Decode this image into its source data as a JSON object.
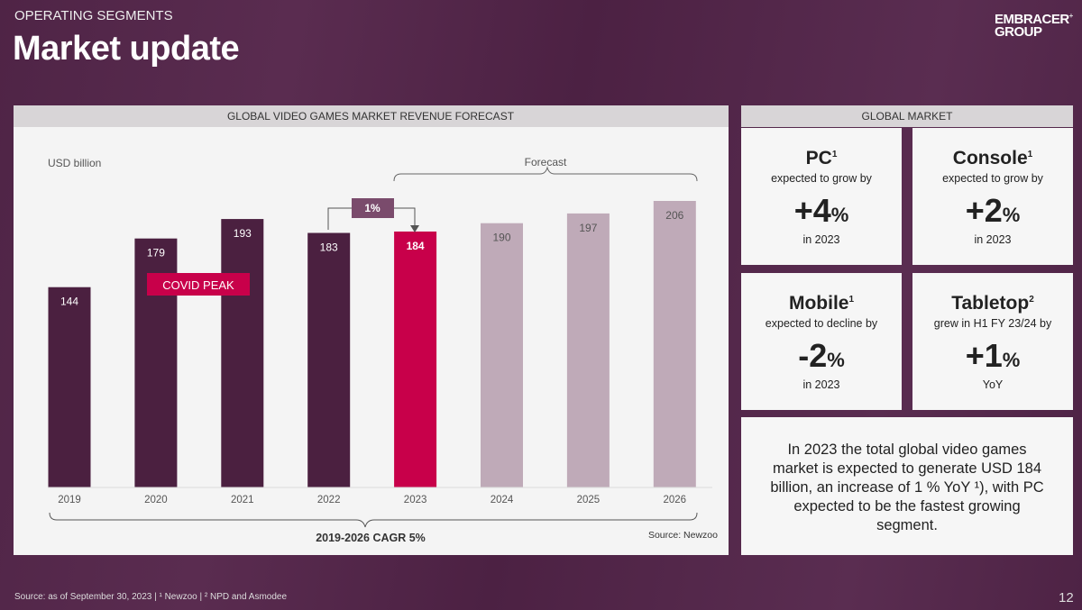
{
  "header": {
    "section": "OPERATING SEGMENTS",
    "title": "Market update",
    "logo": "EMBRACER GROUP"
  },
  "chart_panel": {
    "title": "GLOBAL VIDEO GAMES MARKET REVENUE FORECAST",
    "source": "Source: Newzoo"
  },
  "chart_data": {
    "type": "bar",
    "title": "GLOBAL VIDEO GAMES MARKET REVENUE FORECAST",
    "ylabel": "USD billion",
    "categories": [
      "2019",
      "2020",
      "2021",
      "2022",
      "2023",
      "2024",
      "2025",
      "2026"
    ],
    "values": [
      144,
      179,
      193,
      183,
      184,
      190,
      197,
      206
    ],
    "bar_kind": [
      "actual",
      "actual",
      "actual",
      "actual",
      "current",
      "forecast",
      "forecast",
      "forecast"
    ],
    "colors": {
      "actual": "#4b2040",
      "current": "#c8004a",
      "forecast": "#bfaab8"
    },
    "ylim": [
      0,
      206
    ],
    "annotations": {
      "covid": "COVID PEAK",
      "growth": "1%",
      "forecast": "Forecast",
      "cagr": "2019-2026 CAGR 5%"
    }
  },
  "global_market": {
    "title": "GLOBAL MARKET",
    "cards": [
      {
        "name": "PC",
        "sup": "1",
        "sub": "expected to grow by",
        "value": "+4",
        "unit": "%",
        "foot": "in 2023"
      },
      {
        "name": "Console",
        "sup": "1",
        "sub": "expected to grow by",
        "value": "+2",
        "unit": "%",
        "foot": "in 2023"
      },
      {
        "name": "Mobile",
        "sup": "1",
        "sub": "expected to decline by",
        "value": "-2",
        "unit": "%",
        "foot": "in 2023"
      },
      {
        "name": "Tabletop",
        "sup": "2",
        "sub": "grew in H1 FY 23/24 by",
        "value": "+1",
        "unit": "%",
        "foot": "YoY"
      }
    ],
    "summary": "In 2023 the total global video games market is expected to generate USD 184 billion, an increase of 1 % YoY ¹), with PC expected to be the fastest growing segment."
  },
  "footer": {
    "source": "Source: as of September 30, 2023 | ¹ Newzoo | ² NPD and Asmodee",
    "page": "12"
  }
}
